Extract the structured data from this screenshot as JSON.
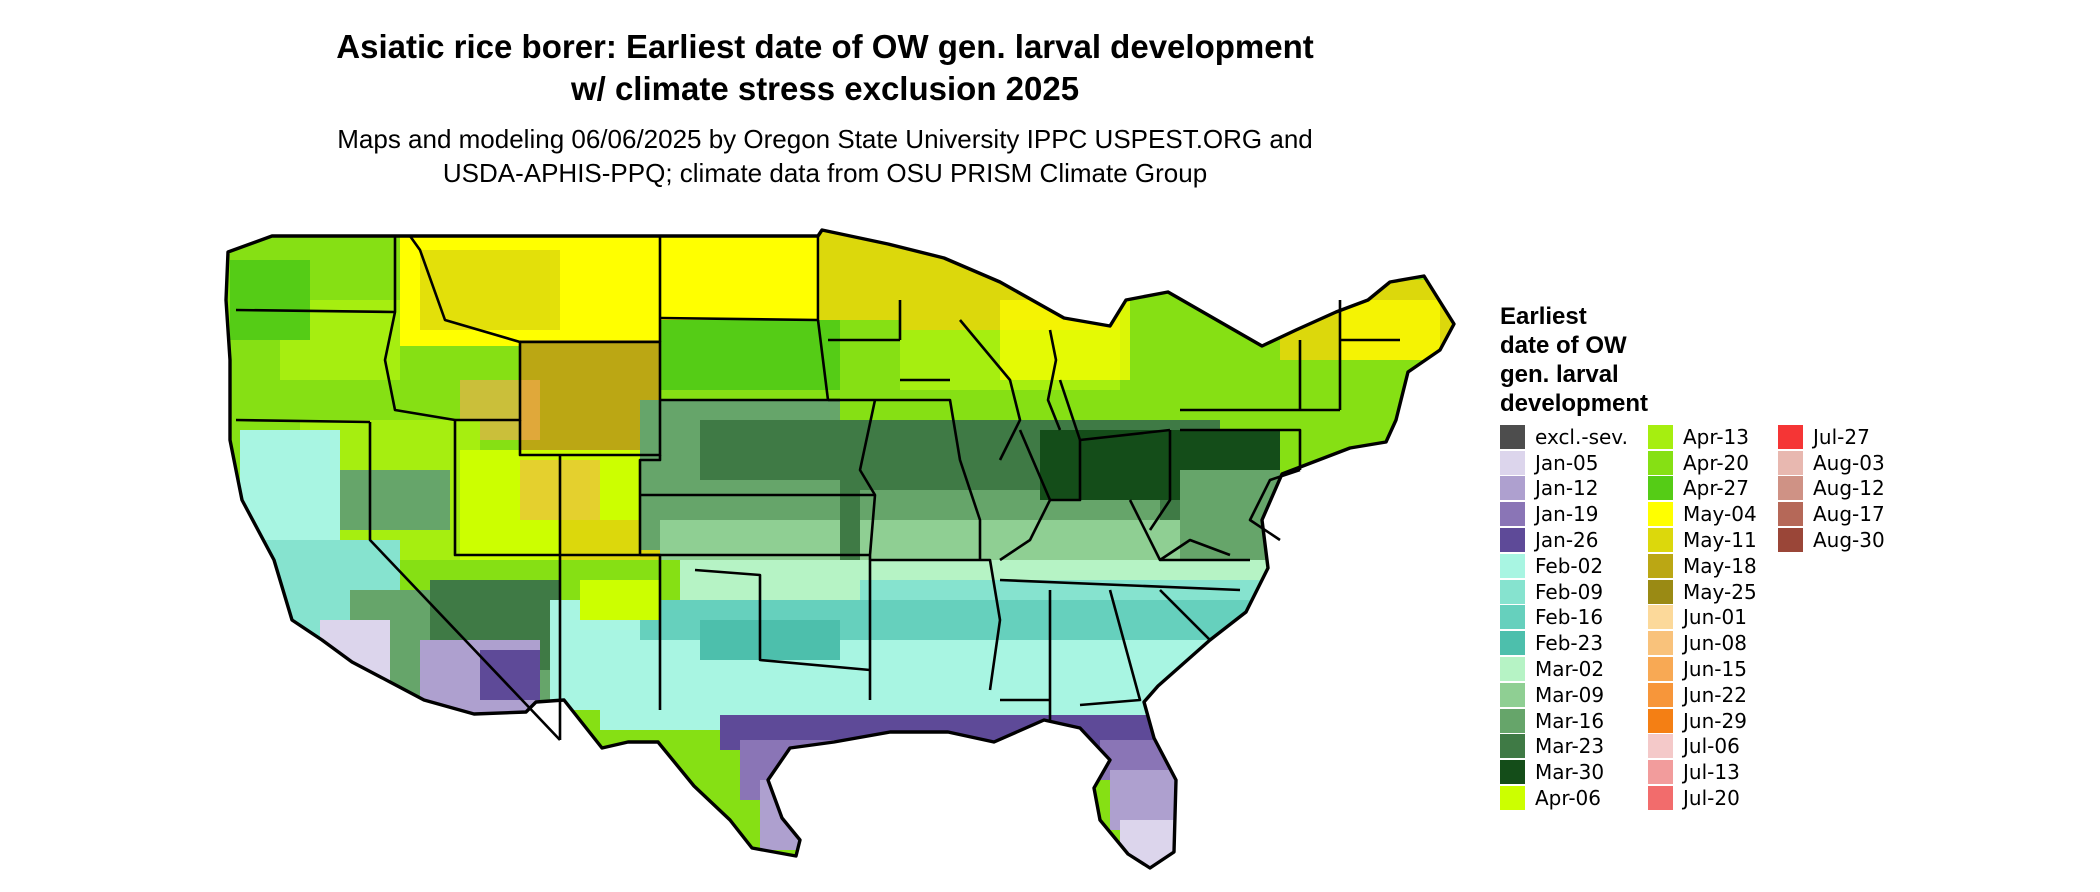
{
  "title_line1": "Asiatic rice borer: Earliest date of OW gen. larval development",
  "title_line2": "w/ climate stress exclusion 2025",
  "subtitle_line1": "Maps and modeling 06/06/2025 by Oregon State University IPPC USPEST.ORG and",
  "subtitle_line2": "USDA-APHIS-PPQ; climate data from OSU PRISM Climate Group",
  "legend": {
    "title": "Earliest\ndate of OW\ngen. larval\ndevelopment",
    "items": [
      {
        "label": "excl.-sev.",
        "color": "#4d4d4d"
      },
      {
        "label": "Jan-05",
        "color": "#dcd5ec"
      },
      {
        "label": "Jan-12",
        "color": "#aea0cf"
      },
      {
        "label": "Jan-19",
        "color": "#8a75b6"
      },
      {
        "label": "Jan-26",
        "color": "#5e4a98"
      },
      {
        "label": "Feb-02",
        "color": "#a8f5e2"
      },
      {
        "label": "Feb-09",
        "color": "#86e3cf"
      },
      {
        "label": "Feb-16",
        "color": "#66d0bd"
      },
      {
        "label": "Feb-23",
        "color": "#4dbfac"
      },
      {
        "label": "Mar-02",
        "color": "#b6f3c5"
      },
      {
        "label": "Mar-09",
        "color": "#8fcf93"
      },
      {
        "label": "Mar-16",
        "color": "#66a56a"
      },
      {
        "label": "Mar-23",
        "color": "#3f7a45"
      },
      {
        "label": "Mar-30",
        "color": "#144d19"
      },
      {
        "label": "Apr-06",
        "color": "#ccff00"
      },
      {
        "label": "Apr-13",
        "color": "#a6ee10"
      },
      {
        "label": "Apr-20",
        "color": "#86e014"
      },
      {
        "label": "Apr-27",
        "color": "#55cc16"
      },
      {
        "label": "May-04",
        "color": "#ffff00"
      },
      {
        "label": "May-11",
        "color": "#dcd80c"
      },
      {
        "label": "May-18",
        "color": "#bba714"
      },
      {
        "label": "May-25",
        "color": "#9a8a14"
      },
      {
        "label": "Jun-01",
        "color": "#fcd99a"
      },
      {
        "label": "Jun-08",
        "color": "#f9c27b"
      },
      {
        "label": "Jun-15",
        "color": "#f8a954"
      },
      {
        "label": "Jun-22",
        "color": "#f7963a"
      },
      {
        "label": "Jun-29",
        "color": "#f47f14"
      },
      {
        "label": "Jul-06",
        "color": "#f4c9c9"
      },
      {
        "label": "Jul-13",
        "color": "#f29c9c"
      },
      {
        "label": "Jul-20",
        "color": "#f26c6c"
      },
      {
        "label": "Jul-27",
        "color": "#f53535"
      },
      {
        "label": "Aug-03",
        "color": "#e8b8b0"
      },
      {
        "label": "Aug-12",
        "color": "#cf9285"
      },
      {
        "label": "Aug-17",
        "color": "#b56858"
      },
      {
        "label": "Aug-30",
        "color": "#9a4638"
      }
    ]
  }
}
